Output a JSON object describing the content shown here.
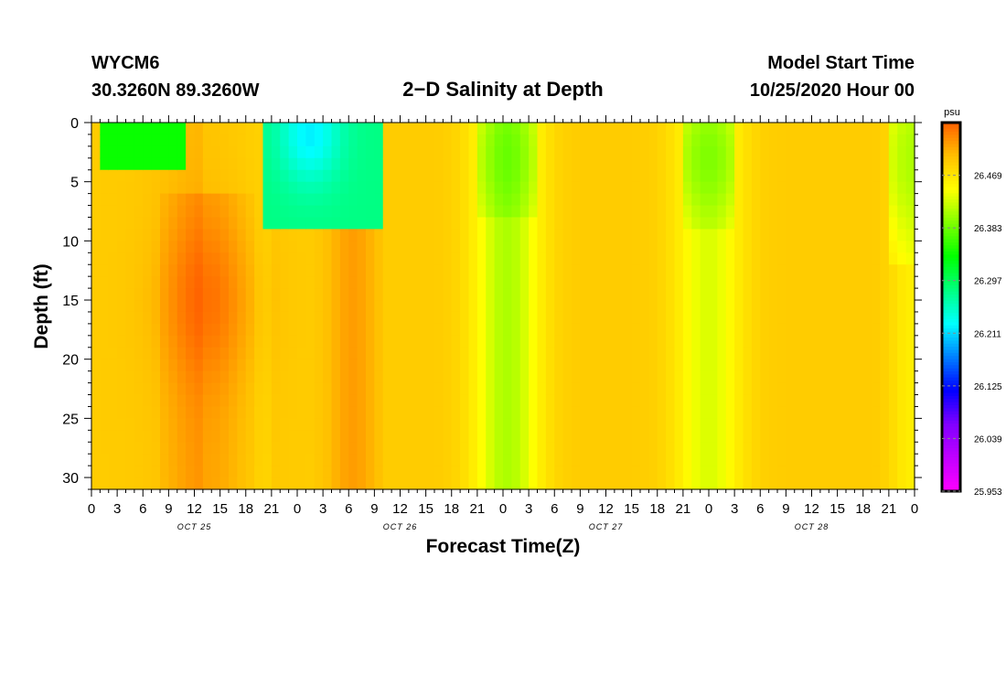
{
  "header": {
    "station": "WYCM6",
    "coords": "30.3260N 89.3260W",
    "title": "2−D Salinity at Depth",
    "start_label": "Model Start Time",
    "start_value": "10/25/2020 Hour 00"
  },
  "chart_data": {
    "type": "heatmap",
    "title": "2−D Salinity at Depth",
    "xlabel": "Forecast Time(Z)",
    "ylabel": "Depth (ft)",
    "x_tick_labels": [
      "0",
      "3",
      "6",
      "9",
      "12",
      "15",
      "18",
      "21",
      "0",
      "3",
      "6",
      "9",
      "12",
      "15",
      "18",
      "21",
      "0",
      "3",
      "6",
      "9",
      "12",
      "15",
      "18",
      "21",
      "0",
      "3",
      "6",
      "9",
      "12",
      "15",
      "18",
      "21",
      "0"
    ],
    "x_range_hours": [
      0,
      96
    ],
    "day_labels": [
      "OCT 25",
      "OCT 26",
      "OCT 27",
      "OCT 28"
    ],
    "y_ticks": [
      0,
      5,
      10,
      15,
      20,
      25,
      30
    ],
    "y_range_ft": [
      0,
      31
    ],
    "y_inverted": true,
    "colorbar": {
      "unit": "psu",
      "ticks": [
        "26.469",
        "26.383",
        "26.297",
        "26.211",
        "26.125",
        "26.039",
        "25.953"
      ],
      "min": 25.953,
      "max": 26.555,
      "colors": [
        "#ff00ff",
        "#c000ff",
        "#8000ff",
        "#0000ff",
        "#0080ff",
        "#00ffff",
        "#00ff80",
        "#00ff00",
        "#80ff00",
        "#ffff00",
        "#ffc000",
        "#ff6000"
      ]
    },
    "features": [
      {
        "label": "low salinity near surface",
        "hours": [
          0,
          11
        ],
        "depth_ft": [
          0,
          4
        ],
        "value": 26.32
      },
      {
        "label": "salinity maximum",
        "hours": [
          9,
          18
        ],
        "depth_ft": [
          8,
          31
        ],
        "value": 26.54
      },
      {
        "label": "low salinity near surface",
        "hours": [
          20,
          34
        ],
        "depth_ft": [
          0,
          10
        ],
        "value": 26.23
      },
      {
        "label": "low salinity column",
        "hours": [
          46,
          52
        ],
        "depth_ft": [
          0,
          31
        ],
        "value": 26.42
      },
      {
        "label": "low salinity column",
        "hours": [
          69,
          75
        ],
        "depth_ft": [
          0,
          31
        ],
        "value": 26.43
      },
      {
        "label": "low salinity column",
        "hours": [
          94,
          96
        ],
        "depth_ft": [
          0,
          31
        ],
        "value": 26.38
      }
    ]
  }
}
